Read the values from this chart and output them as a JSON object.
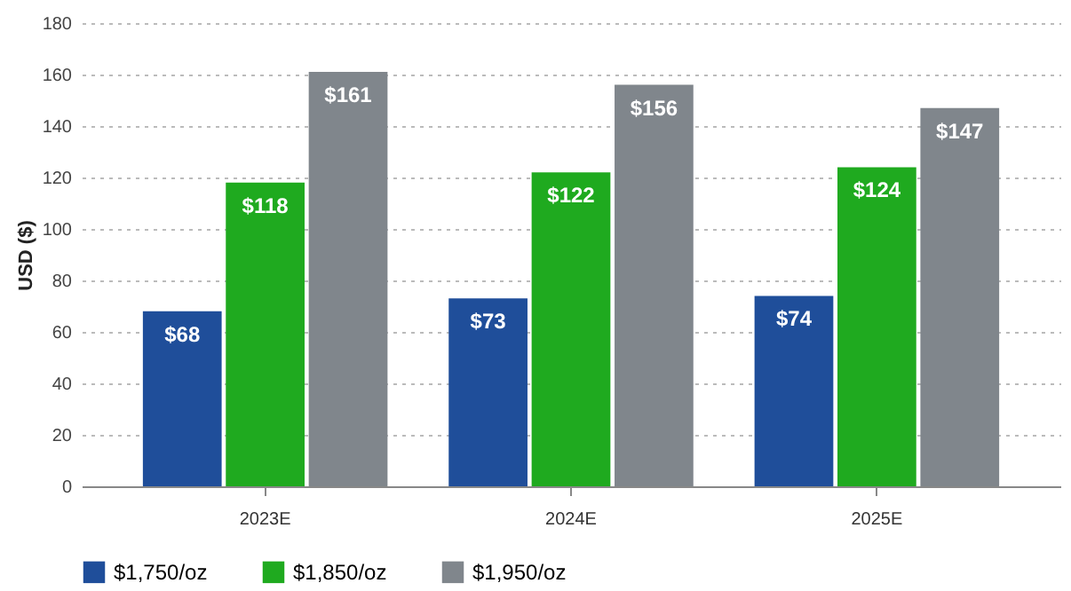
{
  "chart_data": {
    "type": "bar",
    "ylabel": "USD ($)",
    "categories": [
      "2023E",
      "2024E",
      "2025E"
    ],
    "series": [
      {
        "name": "$1,750/oz",
        "color": "#1f4e9a",
        "values": [
          68,
          73,
          74
        ],
        "value_labels": [
          "$68",
          "$73",
          "$74"
        ]
      },
      {
        "name": "$1,850/oz",
        "color": "#1faa1f",
        "values": [
          118,
          122,
          124
        ],
        "value_labels": [
          "$118",
          "$122",
          "$124"
        ]
      },
      {
        "name": "$1,950/oz",
        "color": "#80868c",
        "values": [
          161,
          156,
          147
        ],
        "value_labels": [
          "$161",
          "$156",
          "$147"
        ]
      }
    ],
    "ylim": [
      0,
      180
    ],
    "yticks": [
      0,
      20,
      40,
      60,
      80,
      100,
      120,
      140,
      160,
      180
    ],
    "grid": "y",
    "legend": "bottom"
  }
}
